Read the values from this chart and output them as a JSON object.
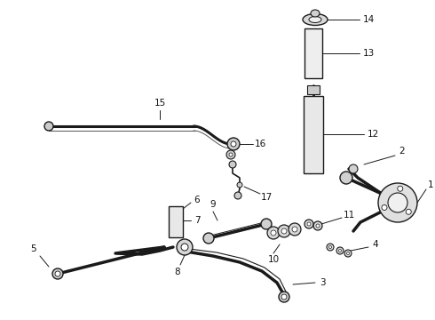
{
  "background_color": "#ffffff",
  "line_color": "#1a1a1a",
  "text_color": "#111111",
  "fig_width": 4.9,
  "fig_height": 3.6,
  "dpi": 100
}
